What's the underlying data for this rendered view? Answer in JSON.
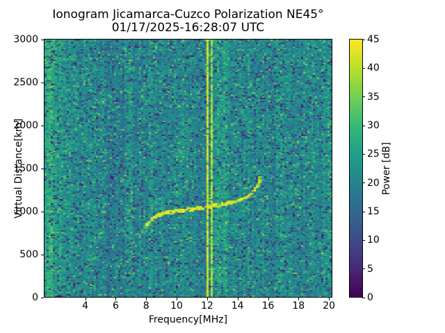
{
  "window": {
    "title_line1": "Ionogram Jicamarca-Cuzco Polarization NE45°",
    "title_line2": "01/17/2025-16:28:07 UTC"
  },
  "chart_data": {
    "type": "heatmap",
    "title": "Ionogram Jicamarca-Cuzco Polarization NE45°",
    "subtitle": "01/17/2025-16:28:07 UTC",
    "xlabel": "Frequency[MHz]",
    "ylabel": "Virtual Distance[km]",
    "colorbar_label": "Power [dB]",
    "xlim": [
      1.3,
      20.2
    ],
    "ylim": [
      0,
      3000
    ],
    "clim": [
      0,
      45
    ],
    "xticks": [
      4,
      6,
      8,
      10,
      12,
      14,
      16,
      18,
      20
    ],
    "yticks": [
      0,
      500,
      1000,
      1500,
      2000,
      2500,
      3000
    ],
    "colorbar_ticks": [
      0,
      5,
      10,
      15,
      20,
      25,
      30,
      35,
      40,
      45
    ],
    "colormap": "viridis",
    "viridis_stops": [
      [
        0.0,
        "#440154"
      ],
      [
        0.11,
        "#482878"
      ],
      [
        0.22,
        "#3e4a89"
      ],
      [
        0.33,
        "#31688e"
      ],
      [
        0.44,
        "#26828e"
      ],
      [
        0.55,
        "#1f9e89"
      ],
      [
        0.66,
        "#35b779"
      ],
      [
        0.77,
        "#6ece58"
      ],
      [
        0.88,
        "#b5de2b"
      ],
      [
        1.0,
        "#fde725"
      ]
    ],
    "noise": {
      "grid_cols": 140,
      "grid_rows": 190,
      "seed": 1234,
      "mean_db": 20.5,
      "jitter_db": 3.2,
      "column_variation_db": 3.4,
      "dropout_chance": 0.11,
      "dropout_db": [
        3,
        14
      ],
      "bright_speckle_chance": 0.05,
      "bright_speckle_db": [
        29,
        36
      ]
    },
    "background_bands": [
      {
        "from_mhz": 1.3,
        "to_mhz": 2.1,
        "delta_db": 6
      },
      {
        "from_mhz": 2.1,
        "to_mhz": 2.7,
        "delta_db": 3.5
      },
      {
        "from_mhz": 2.7,
        "to_mhz": 3.6,
        "delta_db": 1.5
      },
      {
        "from_mhz": 4.4,
        "to_mhz": 4.7,
        "delta_db": 1.5
      },
      {
        "from_mhz": 5.2,
        "to_mhz": 6.6,
        "delta_db": -1.5
      },
      {
        "from_mhz": 6.9,
        "to_mhz": 7.1,
        "delta_db": 1.5
      },
      {
        "from_mhz": 8.25,
        "to_mhz": 8.45,
        "delta_db": 2.5
      },
      {
        "from_mhz": 9.4,
        "to_mhz": 9.6,
        "delta_db": 1.0
      },
      {
        "from_mhz": 10.25,
        "to_mhz": 10.45,
        "delta_db": 1.5
      },
      {
        "from_mhz": 11.1,
        "to_mhz": 11.6,
        "delta_db": -1.5
      },
      {
        "from_mhz": 12.5,
        "to_mhz": 13.35,
        "delta_db": 4
      },
      {
        "from_mhz": 14.65,
        "to_mhz": 14.85,
        "delta_db": 1.5
      },
      {
        "from_mhz": 16.6,
        "to_mhz": 17.2,
        "delta_db": 2
      },
      {
        "from_mhz": 18.9,
        "to_mhz": 19.3,
        "delta_db": 1.5
      },
      {
        "from_mhz": 19.6,
        "to_mhz": 20.2,
        "delta_db": 2.5
      }
    ],
    "interference_lines": [
      {
        "freq_mhz": 12.08,
        "power_db": 45,
        "gap_chance": 0.05
      },
      {
        "freq_mhz": 12.33,
        "power_db": 43,
        "gap_chance": 0.12
      },
      {
        "freq_mhz": 13.05,
        "power_db": 31,
        "gap_chance": 0.55
      }
    ],
    "echo_trace": {
      "description": "F-region ionogram trace",
      "power_db": 43,
      "thickness_km": 30,
      "gap_chance": 0.1,
      "points_mhz_km": [
        [
          7.95,
          840
        ],
        [
          8.2,
          880
        ],
        [
          8.5,
          930
        ],
        [
          8.9,
          960
        ],
        [
          9.4,
          985
        ],
        [
          10.0,
          1000
        ],
        [
          10.6,
          1012
        ],
        [
          11.3,
          1028
        ],
        [
          12.0,
          1045
        ],
        [
          12.7,
          1068
        ],
        [
          13.3,
          1088
        ],
        [
          13.9,
          1110
        ],
        [
          14.4,
          1145
        ],
        [
          14.8,
          1185
        ],
        [
          15.1,
          1240
        ],
        [
          15.35,
          1310
        ],
        [
          15.5,
          1395
        ]
      ],
      "leading_tail": {
        "power_db": 31,
        "thickness_km": 22,
        "points_mhz_km": [
          [
            7.55,
            690
          ],
          [
            7.75,
            780
          ],
          [
            7.95,
            845
          ]
        ]
      },
      "start_blob": {
        "from_mhz": 7.95,
        "to_mhz": 8.7,
        "below_km": 55,
        "power_db": 35
      },
      "end_spurs": [
        {
          "freq_mhz": 15.45,
          "km_from": 1260,
          "km_to": 1400,
          "power_db": 41,
          "gap_chance": 0.3
        },
        {
          "freq_mhz": 15.58,
          "km_from": 1280,
          "km_to": 1410,
          "power_db": 40,
          "gap_chance": 0.35
        }
      ]
    }
  }
}
